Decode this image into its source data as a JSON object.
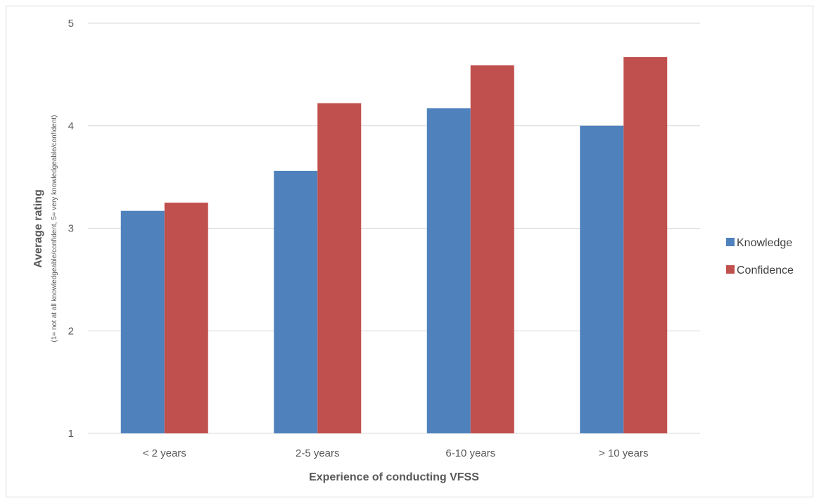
{
  "chart_data": {
    "type": "bar",
    "title": "",
    "xlabel": "Experience of conducting  VFSS",
    "ylabel": "Average rating",
    "ylabel_sub": "(1= not at all knowledgeable/confident,   5= very  knowledgeable/confident)",
    "categories": [
      "< 2 years",
      "2-5 years",
      "6-10 years",
      "> 10 years"
    ],
    "series": [
      {
        "name": "Knowledge",
        "color": "#4f81bd",
        "values": [
          3.17,
          3.56,
          4.17,
          4.0
        ]
      },
      {
        "name": "Confidence",
        "color": "#c0504d",
        "values": [
          3.25,
          4.22,
          4.59,
          4.67
        ]
      }
    ],
    "ylim": [
      1,
      5
    ],
    "yticks": [
      1,
      2,
      3,
      4,
      5
    ],
    "grid": true,
    "legend_position": "right"
  }
}
